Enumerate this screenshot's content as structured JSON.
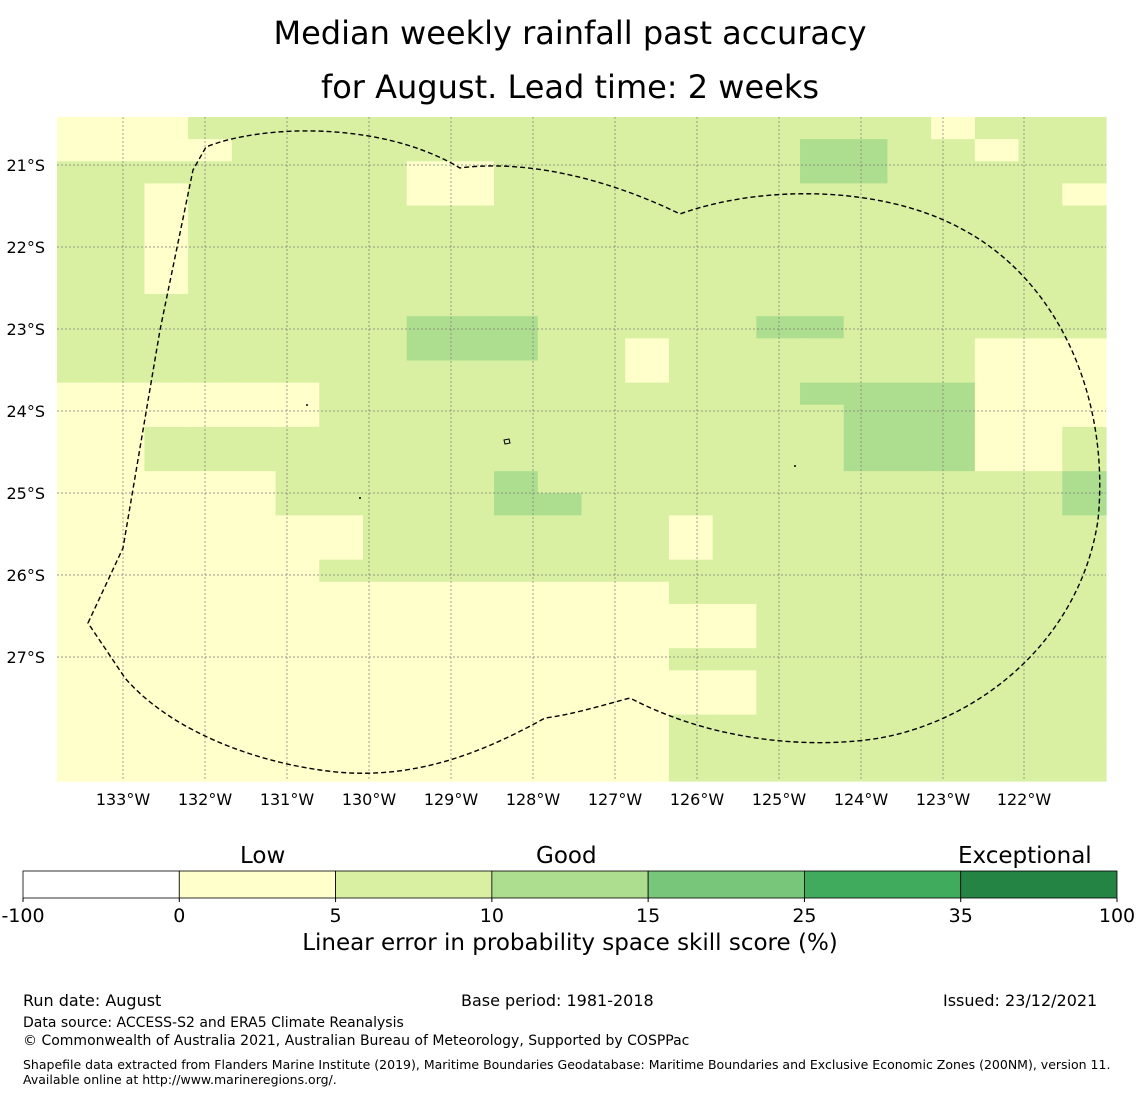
{
  "title": {
    "line1": "Median weekly rainfall past accuracy",
    "line2": "for August. Lead time: 2 weeks"
  },
  "map": {
    "lon_labels": [
      "133°W",
      "132°W",
      "131°W",
      "130°W",
      "129°W",
      "128°W",
      "127°W",
      "126°W",
      "125°W",
      "124°W",
      "123°W",
      "122°W"
    ],
    "lat_labels": [
      "21°S",
      "22°S",
      "23°S",
      "24°S",
      "25°S",
      "26°S",
      "27°S"
    ],
    "grid_rows": [
      "111222222222222222221222",
      "111122222222222223322122",
      "222222221122222223322222",
      "221222221122222222222221",
      "221222222222222222222222",
      "221222222222222222222222",
      "221222222222222222222222",
      "221222222222222222222222",
      "222222222222222222222222",
      "222222223332222233222222",
      "222222223332212222222111",
      "222222222222212222222111",
      "111111222222222223333111",
      "111111222222222222333111",
      "112222222222222222333112",
      "112222222222222222333112",
      "111112222232222222222223",
      "111112222233222222222223",
      "111111122222221222222222",
      "111111122222221222222222",
      "111111222222222222222222",
      "111111111111112222222222",
      "111111111111111122222222",
      "111111111111111122222222",
      "111111111111112222222222",
      "111111111111111122222222",
      "111111111111111122222222",
      "111111111111112222222222",
      "111111111111112222222222",
      "111111111111112222222222"
    ]
  },
  "colorbar": {
    "labels": [
      "-100",
      "0",
      "5",
      "10",
      "15",
      "25",
      "35",
      "100"
    ],
    "colors": [
      "#ffffff",
      "#ffffcc",
      "#d9f0a3",
      "#addd8e",
      "#78c679",
      "#41ab5d",
      "#238443"
    ],
    "category_low": "Low",
    "category_good": "Good",
    "category_exceptional": "Exceptional",
    "title": "Linear error in probability space skill score (%)"
  },
  "footer": {
    "run_date": "Run date: August",
    "base_period": "Base period: 1981-2018",
    "issued": "Issued: 23/12/2021",
    "data_source": "Data source: ACCESS-S2 and ERA5 Climate Reanalysis",
    "copyright": "© Commonwealth of Australia 2021, Australian Bureau of Meteorology, Supported by COSPPac",
    "shapefile": "Shapefile data extracted from Flanders Marine Institute (2019), Maritime Boundaries Geodatabase: Maritime Boundaries and Exclusive Economic Zones (200NM), version 11. Available online at http://www.marineregions.org/."
  }
}
